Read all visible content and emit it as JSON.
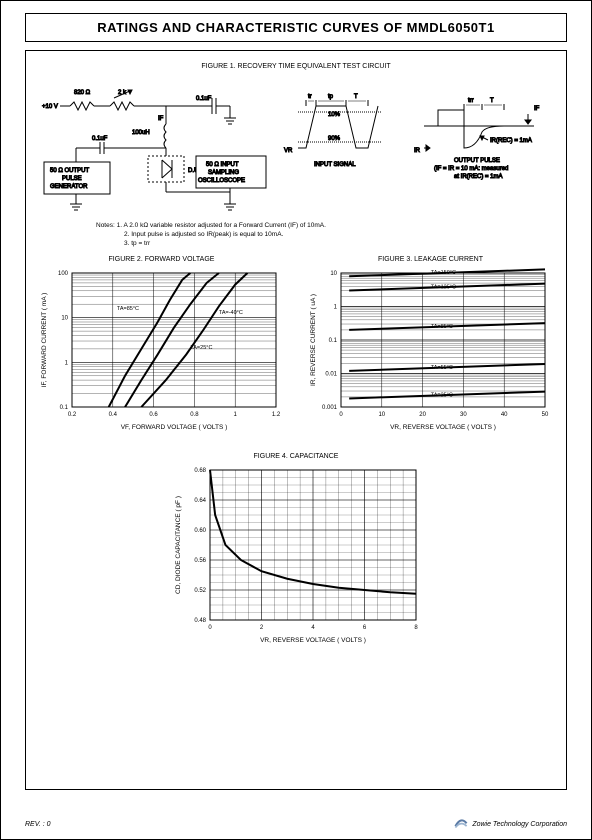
{
  "page": {
    "title": "RATINGS AND CHARACTERISTIC CURVES OF MMDL6050T1",
    "rev": "REV. : 0",
    "company": "Zowie Technology Corporation"
  },
  "fig1": {
    "title": "FIGURE 1. RECOVERY TIME EQUIVALENT TEST CIRCUIT",
    "labels": {
      "r1": "820 Ω",
      "r2": "2 k",
      "v": "+10 V",
      "l1": "100uH",
      "c1": "0.1uF",
      "c2": "0.1uF",
      "if": "IF",
      "dut": "D.U.T.",
      "box1": "50 Ω OUTPUT\nPULSE\nGENERATOR",
      "box2": "50 Ω INPUT\nSAMPLING\nOSCILLOSCOPE",
      "input_signal": "INPUT SIGNAL",
      "vr": "VR",
      "t10": "10%",
      "t90": "90%",
      "tr": "tr",
      "tp": "tp",
      "T": "T",
      "if2": "IF",
      "ir": "IR",
      "trr": "trr",
      "output_pulse": "OUTPUT PULSE",
      "ir_rec": "IR(REC) = 1mA",
      "cond": "(IF = IR = 10 mA: measured\nat IR(REC) = 1mA"
    },
    "notes": [
      "Notes:  1. A 2.0 kΩ variable resistor adjusted for a Forward Current (IF) of 10mA.",
      "2. Input pulse is adjusted so IR(peak) is equal to 10mA.",
      "3. tp = trr"
    ]
  },
  "fig2": {
    "title": "FIGURE 2. FORWARD VOLTAGE",
    "xlabel": "VF, FORWARD VOLTAGE ( VOLTS )",
    "ylabel": "IF, FORWARD CURRENT ( mA )",
    "xlim": [
      0.2,
      1.2
    ],
    "xticks": [
      0.2,
      0.4,
      0.6,
      0.8,
      1.0,
      1.2
    ],
    "ylim": [
      0.1,
      100
    ],
    "yscale": "log",
    "yticks": [
      0.1,
      1.0,
      10,
      100
    ],
    "bg": "#ffffff",
    "grid": "#000000",
    "line_color": "#000000",
    "line_width": 2,
    "curves": [
      {
        "label": "TA=85°C",
        "label_pos": [
          0.42,
          15
        ],
        "pts": [
          [
            0.38,
            0.1
          ],
          [
            0.46,
            0.5
          ],
          [
            0.54,
            2
          ],
          [
            0.62,
            8
          ],
          [
            0.68,
            25
          ],
          [
            0.74,
            70
          ],
          [
            0.78,
            100
          ]
        ]
      },
      {
        "label": "TA=25°C",
        "label_pos": [
          0.78,
          2
        ],
        "pts": [
          [
            0.46,
            0.1
          ],
          [
            0.54,
            0.4
          ],
          [
            0.62,
            1.5
          ],
          [
            0.7,
            6
          ],
          [
            0.78,
            20
          ],
          [
            0.86,
            60
          ],
          [
            0.92,
            100
          ]
        ]
      },
      {
        "label": "TA=-40°C",
        "label_pos": [
          0.92,
          12
        ],
        "pts": [
          [
            0.54,
            0.1
          ],
          [
            0.66,
            0.4
          ],
          [
            0.76,
            1.5
          ],
          [
            0.84,
            5
          ],
          [
            0.92,
            18
          ],
          [
            1.0,
            55
          ],
          [
            1.06,
            100
          ]
        ]
      }
    ]
  },
  "fig3": {
    "title": "FIGURE 3. LEAKAGE CURRENT",
    "xlabel": "VR, REVERSE VOLTAGE ( VOLTS )",
    "ylabel": "IR, REVERSE CURRENT ( uA )",
    "xlim": [
      0,
      50
    ],
    "xticks": [
      0,
      10,
      20,
      30,
      40,
      50
    ],
    "ylim": [
      0.001,
      10
    ],
    "yscale": "log",
    "yticks": [
      0.001,
      0.01,
      0.1,
      1,
      10
    ],
    "bg": "#ffffff",
    "grid": "#000000",
    "line_color": "#000000",
    "line_width": 2,
    "curves": [
      {
        "label": "TA=150°C",
        "y": 8
      },
      {
        "label": "TA=125°C",
        "y": 3
      },
      {
        "label": "TA=85°C",
        "y": 0.2
      },
      {
        "label": "TA=55°C",
        "y": 0.012
      },
      {
        "label": "TA=25°C",
        "y": 0.0018
      }
    ]
  },
  "fig4": {
    "title": "FIGURE 4. CAPACITANCE",
    "xlabel": "VR, REVERSE VOLTAGE ( VOLTS )",
    "ylabel": "CD, DIODE CAPACITANCE ( pF )",
    "xlim": [
      0,
      8
    ],
    "xticks": [
      0,
      2,
      4,
      6,
      8
    ],
    "ylim": [
      0.48,
      0.68
    ],
    "yticks": [
      0.48,
      0.52,
      0.56,
      0.6,
      0.64,
      0.68
    ],
    "bg": "#ffffff",
    "grid": "#000000",
    "line_color": "#000000",
    "line_width": 2,
    "curve": [
      [
        0,
        0.68
      ],
      [
        0.2,
        0.62
      ],
      [
        0.6,
        0.58
      ],
      [
        1.2,
        0.56
      ],
      [
        2,
        0.545
      ],
      [
        3,
        0.535
      ],
      [
        4,
        0.528
      ],
      [
        5,
        0.523
      ],
      [
        6,
        0.52
      ],
      [
        7,
        0.517
      ],
      [
        8,
        0.515
      ]
    ]
  }
}
